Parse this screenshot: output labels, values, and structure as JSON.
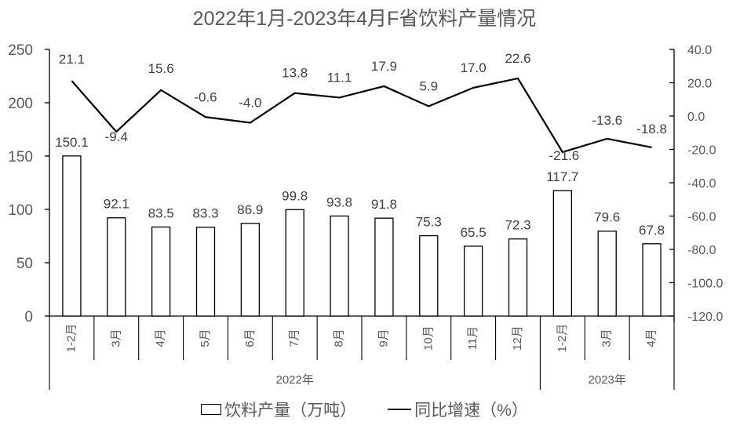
{
  "chart_data": {
    "type": "bar+line",
    "title": "2022年1月-2023年4月F省饮料产量情况",
    "categories": [
      "1-2月",
      "3月",
      "4月",
      "5月",
      "6月",
      "7月",
      "8月",
      "9月",
      "10月",
      "11月",
      "12月",
      "1-2月",
      "3月",
      "4月"
    ],
    "groups": [
      {
        "label": "2022年",
        "start": 0,
        "end": 10
      },
      {
        "label": "2023年",
        "start": 11,
        "end": 13
      }
    ],
    "series": [
      {
        "name": "饮料产量（万吨）",
        "type": "bar",
        "axis": "left",
        "values": [
          150.1,
          92.1,
          83.5,
          83.3,
          86.9,
          99.8,
          93.8,
          91.8,
          75.3,
          65.5,
          72.3,
          117.7,
          79.6,
          67.8
        ]
      },
      {
        "name": "同比增速（%）",
        "type": "line",
        "axis": "right",
        "values": [
          21.1,
          -9.4,
          15.6,
          -0.6,
          -4.0,
          13.8,
          11.1,
          17.9,
          5.9,
          17.0,
          22.6,
          -21.6,
          -13.6,
          -18.8
        ]
      }
    ],
    "left_axis": {
      "ylim": [
        0,
        250
      ],
      "ticks": [
        "0",
        "50",
        "100",
        "150",
        "200",
        "250"
      ]
    },
    "right_axis": {
      "ylim": [
        -120,
        40
      ],
      "ticks": [
        "-120.0",
        "-100.0",
        "-80.0",
        "-60.0",
        "-40.0",
        "-20.0",
        "0.0",
        "20.0",
        "40.0"
      ]
    },
    "grid": false,
    "legend_position": "bottom",
    "colors": {
      "bar_fill": "#ffffff",
      "bar_stroke": "#000000",
      "line": "#000000",
      "text": "#595959"
    }
  },
  "legend": {
    "bar_label": "饮料产量（万吨）",
    "line_label": "同比增速（%）"
  }
}
